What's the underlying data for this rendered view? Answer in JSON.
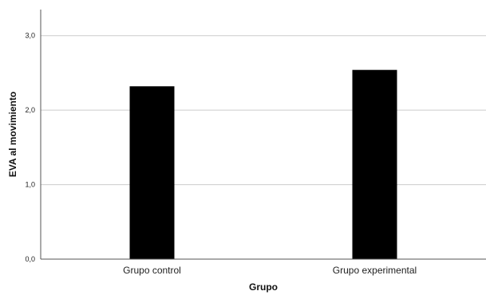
{
  "chart_data": {
    "type": "bar",
    "title": "",
    "xlabel": "Grupo",
    "ylabel": "EVA al movimiento",
    "categories": [
      "Grupo control",
      "Grupo experimental"
    ],
    "values": [
      2.32,
      2.54
    ],
    "ylim": [
      0,
      3.35
    ],
    "yticks": [
      0,
      1,
      2,
      3
    ],
    "ytick_labels": [
      "0,0",
      "1,0",
      "2,0",
      "3,0"
    ],
    "grid": "horizontal",
    "bar_color": "#000000",
    "grid_color": "#cccccc",
    "axis_color": "#555555"
  }
}
